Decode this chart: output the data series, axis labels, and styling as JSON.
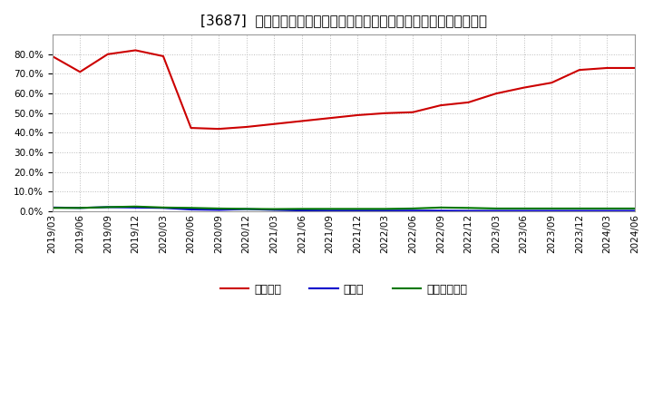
{
  "title": "[3687]  自己資本、のれん、繰延税金資産の総資産に対する比率の推移",
  "background_color": "#ffffff",
  "plot_bg_color": "#ffffff",
  "grid_color": "#bbbbbb",
  "dates": [
    "2019/03",
    "2019/06",
    "2019/09",
    "2019/12",
    "2020/03",
    "2020/06",
    "2020/09",
    "2020/12",
    "2021/03",
    "2021/06",
    "2021/09",
    "2021/12",
    "2022/03",
    "2022/06",
    "2022/09",
    "2022/12",
    "2023/03",
    "2023/06",
    "2023/09",
    "2023/12",
    "2024/03",
    "2024/06"
  ],
  "jiko_shihon": [
    0.79,
    0.71,
    0.8,
    0.82,
    0.79,
    0.425,
    0.42,
    0.43,
    0.445,
    0.46,
    0.475,
    0.49,
    0.5,
    0.505,
    0.54,
    0.555,
    0.6,
    0.63,
    0.655,
    0.72,
    0.73,
    0.73
  ],
  "noren": [
    0.02,
    0.018,
    0.022,
    0.02,
    0.018,
    0.01,
    0.008,
    0.012,
    0.008,
    0.005,
    0.004,
    0.004,
    0.004,
    0.004,
    0.004,
    0.003,
    0.003,
    0.003,
    0.003,
    0.003,
    0.003,
    0.003
  ],
  "kurinobe_zeikin": [
    0.018,
    0.018,
    0.022,
    0.025,
    0.02,
    0.018,
    0.015,
    0.013,
    0.012,
    0.013,
    0.013,
    0.013,
    0.013,
    0.015,
    0.02,
    0.018,
    0.015,
    0.015,
    0.015,
    0.015,
    0.015,
    0.015
  ],
  "jiko_color": "#cc0000",
  "noren_color": "#0000cc",
  "kurinobe_color": "#007700",
  "legend_labels": [
    "自己資本",
    "のれん",
    "繰延税金資産"
  ],
  "ylim": [
    0.0,
    0.9
  ],
  "yticks": [
    0.0,
    0.1,
    0.2,
    0.3,
    0.4,
    0.5,
    0.6,
    0.7,
    0.8
  ],
  "title_fontsize": 11,
  "tick_fontsize": 7.5,
  "legend_fontsize": 9
}
